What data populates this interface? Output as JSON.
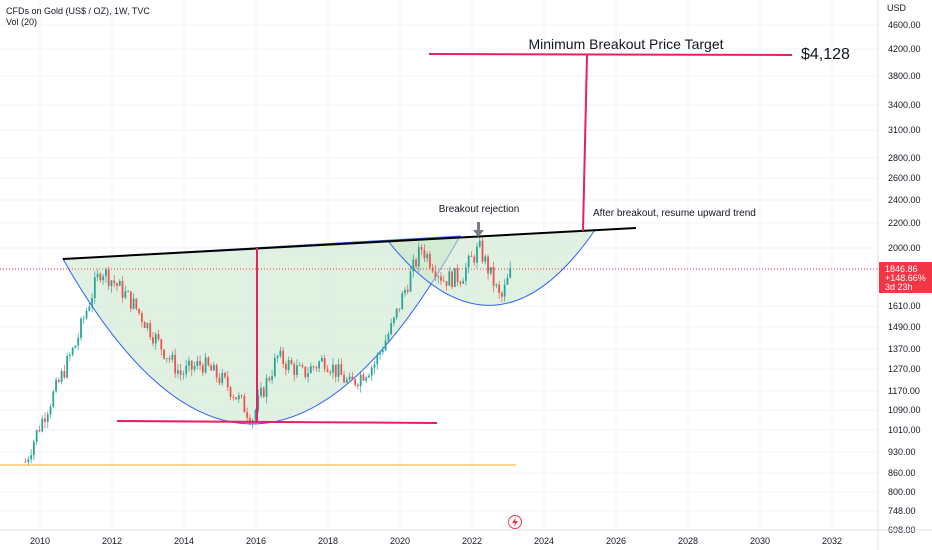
{
  "header": {
    "symbol_title": "CFDs on Gold (US$ / OZ), 1W, TVC",
    "volume_label": "Vol (20)"
  },
  "price_axis": {
    "currency": "USD",
    "ticks": [
      "4600.00",
      "4200.00",
      "3800.00",
      "3400.00",
      "3100.00",
      "2800.00",
      "2600.00",
      "2400.00",
      "2200.00",
      "2000.00",
      "1610.00",
      "1490.00",
      "1370.00",
      "1270.00",
      "1170.00",
      "1090.00",
      "1010.00",
      "930.00",
      "860.00",
      "800.00",
      "748.00",
      "698.00"
    ],
    "last_price": {
      "price": "1846.86",
      "change": "+148.66%",
      "countdown": "3d 23h",
      "color": "#f23645"
    }
  },
  "time_axis": {
    "ticks": [
      "2010",
      "2012",
      "2014",
      "2016",
      "2018",
      "2020",
      "2022",
      "2024",
      "2026",
      "2028",
      "2030",
      "2032"
    ]
  },
  "annotations": {
    "target_label": "Minimum Breakout Price Target",
    "target_price": "$4,128",
    "rejection_label": "Breakout rejection",
    "breakout_label": "After breakout, resume upward trend"
  },
  "colors": {
    "target_line": "#e91e63",
    "cup_fill": "#c8e6c9",
    "cup_stroke": "#2962ff",
    "neckline": "#000000",
    "support_line": "#ffa726",
    "candle_up": "#26a69a",
    "candle_down": "#ef5350"
  },
  "chart_data": {
    "type": "candlestick",
    "title": "CFDs on Gold (US$ / OZ), 1W, TVC",
    "y_axis": "USD",
    "ylim": [
      698,
      4600
    ],
    "xlim": [
      2009.5,
      2033
    ],
    "log_scale": true,
    "series": [
      {
        "name": "CFDs on Gold (US$ / OZ)",
        "x": [
          2009.6,
          2010.5,
          2011.0,
          2011.7,
          2012.5,
          2013.3,
          2013.9,
          2014.5,
          2015.2,
          2015.9,
          2016.6,
          2017.3,
          2017.9,
          2018.6,
          2019.3,
          2019.8,
          2020.6,
          2021.2,
          2021.7,
          2022.2,
          2022.8,
          2023.1
        ],
        "y": [
          900,
          1200,
          1400,
          1850,
          1650,
          1400,
          1250,
          1300,
          1200,
          1060,
          1330,
          1250,
          1320,
          1200,
          1300,
          1500,
          2000,
          1780,
          1800,
          2000,
          1640,
          1847
        ]
      }
    ],
    "annotations": [
      "Minimum Breakout Price Target",
      "$4,128",
      "Breakout rejection",
      "After breakout, resume upward trend"
    ]
  }
}
